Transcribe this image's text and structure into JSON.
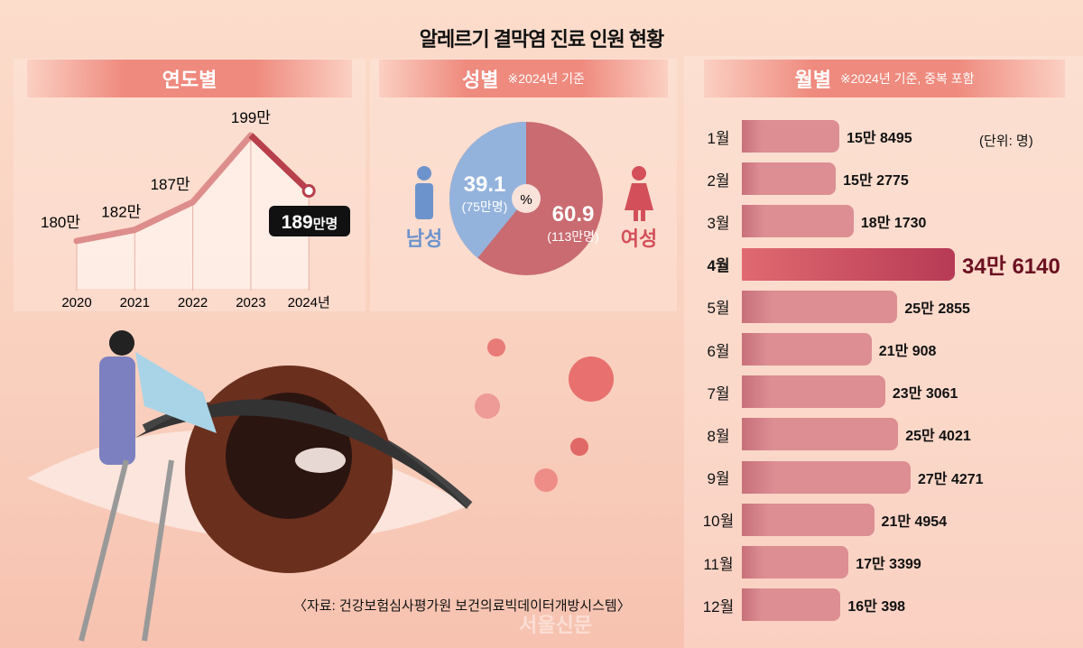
{
  "title": "알레르기 결막염 진료 인원 현황",
  "yearly": {
    "header": "연도별",
    "last_callout_num": "189",
    "last_callout_unit": "만명"
  },
  "gender": {
    "header": "성별",
    "note": "※2024년 기준",
    "male_label": "남성",
    "female_label": "여성",
    "male_pct": "39.1",
    "male_count": "(75만명)",
    "female_pct": "60.9",
    "female_count": "(113만명)",
    "center": "%"
  },
  "monthly": {
    "header": "월별",
    "note": "※2024년 기준, 중복 포함",
    "unit": "(단위: 명)"
  },
  "source": "〈자료: 건강보험심사평가원 보건의료빅데이터개방시스템〉",
  "watermark": "서울신문",
  "colors": {
    "male": "#93b3dc",
    "female": "#c96b70",
    "accent": "#ef8a7e",
    "highlight": "#b73a55"
  },
  "chart_data": [
    {
      "type": "line",
      "title": "연도별",
      "categories": [
        "2020",
        "2021",
        "2022",
        "2023",
        "2024년"
      ],
      "values": [
        180,
        182,
        187,
        199,
        189
      ],
      "labels": [
        "180만",
        "182만",
        "187만",
        "199만",
        "189만명"
      ],
      "unit": "만명",
      "ylim": [
        170,
        205
      ]
    },
    {
      "type": "pie",
      "title": "성별",
      "categories": [
        "남성",
        "여성"
      ],
      "values": [
        39.1,
        60.9
      ],
      "counts": [
        "75만명",
        "113만명"
      ]
    },
    {
      "type": "bar",
      "title": "월별",
      "categories": [
        "1월",
        "2월",
        "3월",
        "4월",
        "5월",
        "6월",
        "7월",
        "8월",
        "9월",
        "10월",
        "11월",
        "12월"
      ],
      "values": [
        158495,
        152775,
        181730,
        346140,
        252855,
        210908,
        233061,
        254021,
        274271,
        214954,
        173399,
        160398
      ],
      "labels": [
        "15만 8495",
        "15만 2775",
        "18만 1730",
        "34만 6140",
        "25만 2855",
        "21만 908",
        "23만 3061",
        "25만 4021",
        "27만 4271",
        "21만 4954",
        "17만 3399",
        "16만 398"
      ],
      "highlight_index": 3
    }
  ]
}
